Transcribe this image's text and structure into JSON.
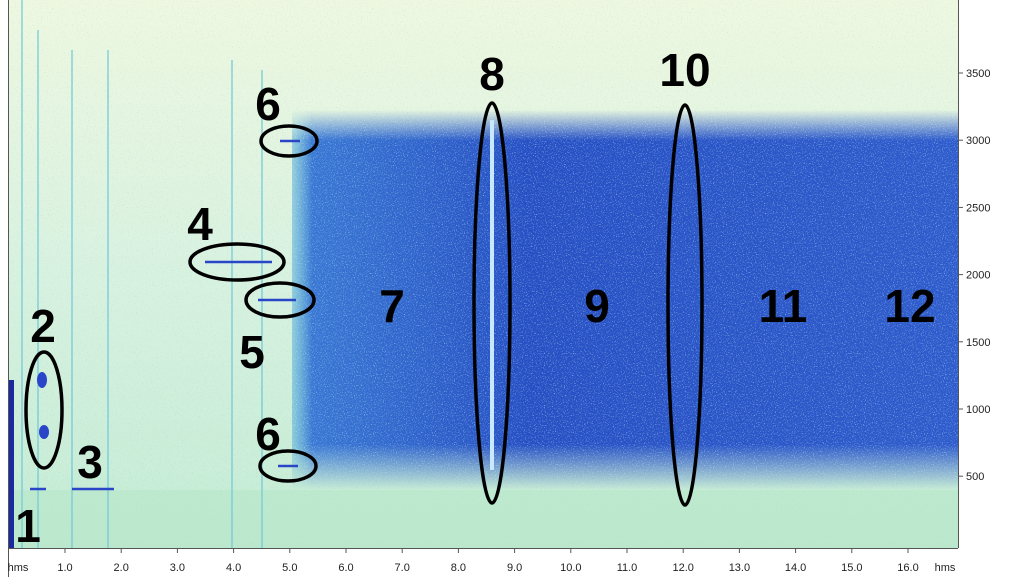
{
  "spectrogram": {
    "y_axis": {
      "labels": [
        "3500",
        "3000",
        "2500",
        "2000",
        "1500",
        "1000",
        "500"
      ]
    },
    "x_axis": {
      "labels": [
        "hms",
        "1.0",
        "2.0",
        "3.0",
        "4.0",
        "5.0",
        "6.0",
        "7.0",
        "8.0",
        "9.0",
        "10.0",
        "11.0",
        "12.0",
        "13.0",
        "14.0",
        "15.0",
        "16.0",
        "hms"
      ]
    }
  },
  "annotations": {
    "labels": [
      "1",
      "2",
      "3",
      "4",
      "5",
      "6",
      "6",
      "7",
      "8",
      "9",
      "10",
      "11",
      "12"
    ]
  }
}
